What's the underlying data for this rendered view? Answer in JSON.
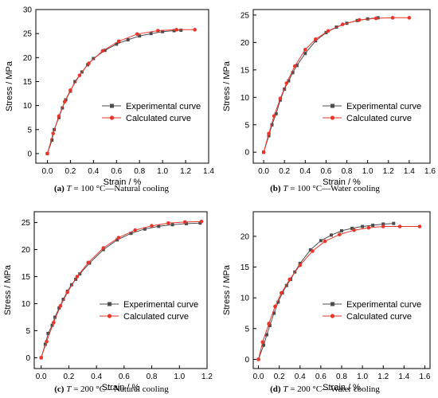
{
  "colors": {
    "experimental": "#4d4d4d",
    "calculated": "#e8362b",
    "axis": "#000000"
  },
  "chart_data": [
    {
      "type": "line",
      "caption": {
        "letter": "(a)",
        "var": "T",
        "rest": " = 100 °C—Natural cooling"
      },
      "xlabel": "Strain / %",
      "ylabel": "Stress / MPa",
      "xlim": [
        -0.1,
        1.4
      ],
      "ylim": [
        -2,
        30
      ],
      "xticks": [
        "0.0",
        "0.2",
        "0.4",
        "0.6",
        "0.8",
        "1.0",
        "1.2",
        "1.4"
      ],
      "yticks": [
        "0",
        "5",
        "10",
        "15",
        "20",
        "25",
        "30"
      ],
      "legend_position": "right-center",
      "series": [
        {
          "name": "Experimental curve",
          "marker": "square",
          "x": [
            0.0,
            0.04,
            0.06,
            0.1,
            0.13,
            0.16,
            0.2,
            0.24,
            0.3,
            0.35,
            0.4,
            0.5,
            0.6,
            0.7,
            0.8,
            0.9,
            1.0,
            1.1,
            1.16
          ],
          "y": [
            0,
            2.8,
            5.0,
            7.5,
            9.5,
            11.2,
            13.0,
            15.0,
            17.0,
            18.5,
            19.8,
            21.5,
            22.8,
            23.7,
            24.5,
            25.0,
            25.4,
            25.6,
            25.7
          ]
        },
        {
          "name": "Calculated curve",
          "marker": "circle",
          "x": [
            0.0,
            0.05,
            0.1,
            0.15,
            0.2,
            0.28,
            0.36,
            0.48,
            0.62,
            0.78,
            0.96,
            1.12,
            1.28
          ],
          "y": [
            0,
            4.2,
            7.8,
            10.8,
            13.2,
            16.3,
            18.8,
            21.4,
            23.4,
            24.9,
            25.6,
            25.8,
            25.8
          ]
        }
      ]
    },
    {
      "type": "line",
      "caption": {
        "letter": "(b)",
        "var": "T",
        "rest": " = 100 °C—Water cooling"
      },
      "xlabel": "Strain / %",
      "ylabel": "Stress / MPa",
      "xlim": [
        -0.1,
        1.6
      ],
      "ylim": [
        -2,
        26
      ],
      "xticks": [
        "0.0",
        "0.2",
        "0.4",
        "0.6",
        "0.8",
        "1.0",
        "1.2",
        "1.4",
        "1.6"
      ],
      "yticks": [
        "0",
        "5",
        "10",
        "15",
        "20",
        "25"
      ],
      "legend_position": "right-center",
      "series": [
        {
          "name": "Experimental curve",
          "marker": "square",
          "x": [
            0.0,
            0.05,
            0.08,
            0.12,
            0.16,
            0.2,
            0.24,
            0.28,
            0.32,
            0.4,
            0.5,
            0.6,
            0.7,
            0.8,
            0.9,
            1.0,
            1.1
          ],
          "y": [
            0,
            3.0,
            5.0,
            7.0,
            9.5,
            11.5,
            13.0,
            14.5,
            15.8,
            18.0,
            20.3,
            21.8,
            22.8,
            23.5,
            24.0,
            24.3,
            24.5
          ]
        },
        {
          "name": "Calculated curve",
          "marker": "circle",
          "x": [
            0.0,
            0.05,
            0.1,
            0.16,
            0.22,
            0.3,
            0.4,
            0.5,
            0.62,
            0.76,
            0.92,
            1.08,
            1.24,
            1.4
          ],
          "y": [
            0,
            3.4,
            6.6,
            9.8,
            12.6,
            15.7,
            18.7,
            20.6,
            22.1,
            23.3,
            24.1,
            24.4,
            24.5,
            24.5
          ]
        }
      ]
    },
    {
      "type": "line",
      "caption": {
        "letter": "(c)",
        "var": "T",
        "rest": " = 200 °C—Natural cooling"
      },
      "xlabel": "Strain / %",
      "ylabel": "Stress / MPa",
      "xlim": [
        -0.05,
        1.2
      ],
      "ylim": [
        -2,
        27
      ],
      "xticks": [
        "0.0",
        "0.2",
        "0.4",
        "0.6",
        "0.8",
        "1.0",
        "1.2"
      ],
      "yticks": [
        "0",
        "5",
        "10",
        "15",
        "20",
        "25"
      ],
      "legend_position": "right-center",
      "series": [
        {
          "name": "Experimental curve",
          "marker": "square",
          "x": [
            0.0,
            0.03,
            0.05,
            0.08,
            0.1,
            0.13,
            0.16,
            0.19,
            0.22,
            0.25,
            0.28,
            0.35,
            0.45,
            0.55,
            0.65,
            0.75,
            0.85,
            0.95,
            1.05,
            1.15
          ],
          "y": [
            0,
            2.5,
            4.5,
            6.0,
            7.5,
            9.2,
            10.8,
            12.3,
            13.5,
            14.5,
            15.5,
            17.5,
            20.0,
            21.8,
            23.0,
            23.8,
            24.3,
            24.6,
            24.8,
            24.9
          ]
        },
        {
          "name": "Calculated curve",
          "marker": "circle",
          "x": [
            0.0,
            0.04,
            0.09,
            0.14,
            0.19,
            0.26,
            0.34,
            0.45,
            0.56,
            0.68,
            0.8,
            0.92,
            1.04,
            1.16
          ],
          "y": [
            0,
            3.0,
            6.5,
            9.6,
            12.1,
            15.0,
            17.6,
            20.3,
            22.2,
            23.6,
            24.4,
            24.9,
            25.1,
            25.2
          ]
        }
      ]
    },
    {
      "type": "line",
      "caption": {
        "letter": "(d)",
        "var": "T",
        "rest": " = 200 °C—Water cooling"
      },
      "xlabel": "Strain / %",
      "ylabel": "Stress / MPa",
      "xlim": [
        -0.05,
        1.65
      ],
      "ylim": [
        -1.5,
        24
      ],
      "xticks": [
        "0.0",
        "0.2",
        "0.4",
        "0.6",
        "0.8",
        "1.0",
        "1.2",
        "1.4",
        "1.6"
      ],
      "yticks": [
        "0",
        "5",
        "10",
        "15",
        "20"
      ],
      "legend_position": "right-center",
      "series": [
        {
          "name": "Experimental curve",
          "marker": "square",
          "x": [
            0.0,
            0.05,
            0.08,
            0.11,
            0.15,
            0.19,
            0.23,
            0.27,
            0.31,
            0.35,
            0.4,
            0.5,
            0.6,
            0.7,
            0.8,
            0.9,
            1.0,
            1.1,
            1.2,
            1.3
          ],
          "y": [
            0,
            2.3,
            4.0,
            5.5,
            7.5,
            9.3,
            10.8,
            12.0,
            13.0,
            14.2,
            15.6,
            17.8,
            19.3,
            20.2,
            20.9,
            21.3,
            21.6,
            21.8,
            22.0,
            22.1
          ]
        },
        {
          "name": "Calculated curve",
          "marker": "circle",
          "x": [
            0.0,
            0.04,
            0.1,
            0.16,
            0.22,
            0.3,
            0.4,
            0.52,
            0.64,
            0.78,
            0.92,
            1.06,
            1.2,
            1.36,
            1.55
          ],
          "y": [
            0,
            2.8,
            5.8,
            8.6,
            10.8,
            13.0,
            15.3,
            17.6,
            19.2,
            20.3,
            21.0,
            21.4,
            21.6,
            21.6,
            21.6
          ]
        }
      ]
    }
  ]
}
